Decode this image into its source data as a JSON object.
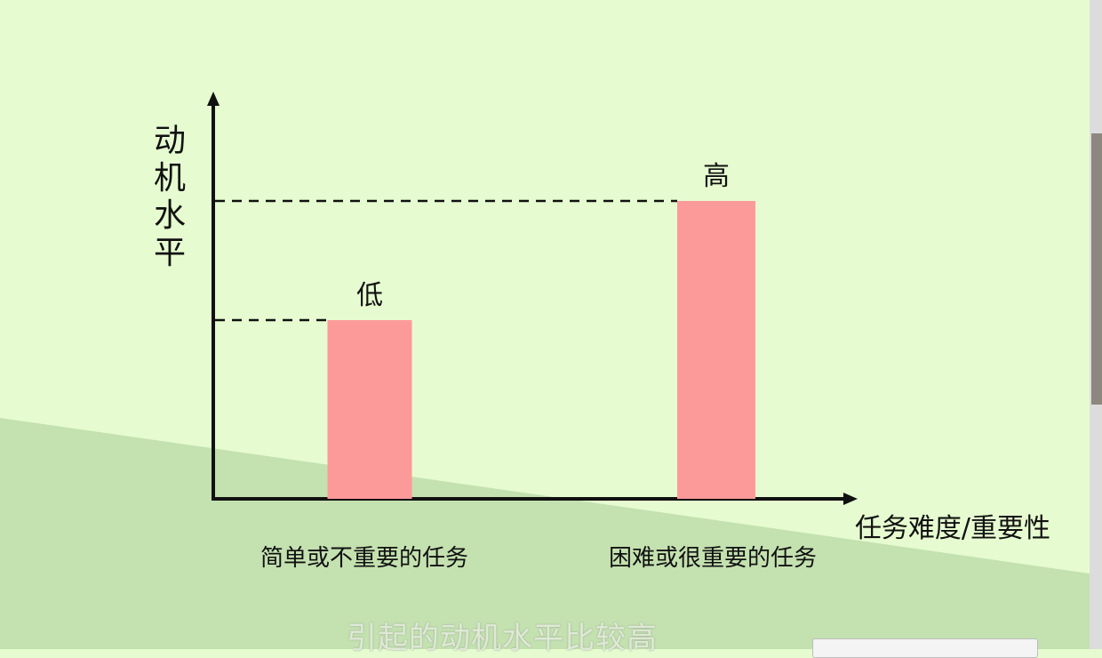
{
  "chart_data": {
    "type": "bar",
    "ylabel": "动机水平",
    "xlabel": "任务难度/重要性",
    "categories": [
      "简单或不重要的任务",
      "困难或很重要的任务"
    ],
    "values": [
      0.6,
      1.0
    ],
    "data_labels": [
      "低",
      "高"
    ],
    "ylim": [
      0,
      1.3
    ],
    "reference_lines": "dashed",
    "bar_color": "#fc9a9a"
  },
  "colors": {
    "background": "#e6fcd0",
    "lower_band": "#c4e1b0",
    "axis": "#111111"
  },
  "subtitle": "引起的动机水平比较高"
}
